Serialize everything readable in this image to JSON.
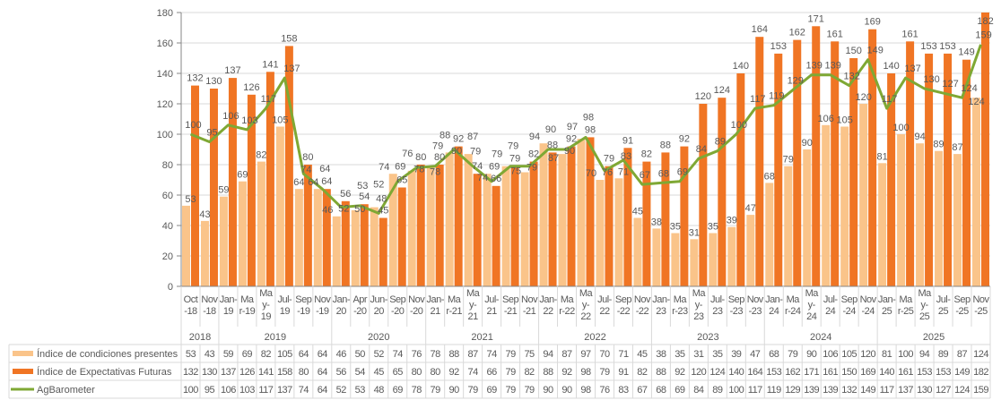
{
  "chart_data": {
    "type": "bar",
    "title": "",
    "xlabel": "",
    "ylabel": "",
    "ylim": [
      0,
      180
    ],
    "yticks": [
      0,
      20,
      40,
      60,
      80,
      100,
      120,
      140,
      160,
      180
    ],
    "grid": true,
    "legend_placement": "bottom data table",
    "categories": [
      "Oct-18",
      "Nov-18",
      "Jan-19",
      "Mar-19",
      "May-19",
      "Jul-19",
      "Sep-19",
      "Nov-19",
      "Jan-20",
      "Apr-20",
      "Jun-20",
      "Sep-20",
      "Nov-20",
      "Jan-21",
      "Mar-21",
      "May-21",
      "Jul-21",
      "Sep-21",
      "Nov-21",
      "Jan-22",
      "Mar-22",
      "May-22",
      "Jul-22",
      "Sep-22",
      "Nov-22",
      "Jan-23",
      "Mar-23",
      "May-23",
      "Jul-23",
      "Sep-23",
      "Nov-23",
      "Jan-24",
      "Mar-24",
      "May-24",
      "Jul-24",
      "Sep-24",
      "Nov-24",
      "Jan-25",
      "Mar-25",
      "May-25",
      "Jul-25",
      "Sep-25",
      "Nov-25"
    ],
    "year_groups": [
      {
        "label": "2018",
        "count": 2
      },
      {
        "label": "2019",
        "count": 6
      },
      {
        "label": "2020",
        "count": 5
      },
      {
        "label": "2021",
        "count": 6
      },
      {
        "label": "2022",
        "count": 6
      },
      {
        "label": "2023",
        "count": 6
      },
      {
        "label": "2024",
        "count": 6
      },
      {
        "label": "2025",
        "count": 6
      }
    ],
    "series": [
      {
        "name": "Índice de condiciones presentes",
        "type": "bar",
        "color": "#FAC48A",
        "values": [
          53,
          43,
          59,
          69,
          82,
          105,
          64,
          64,
          46,
          50,
          52,
          74,
          76,
          78,
          88,
          87,
          74,
          79,
          75,
          94,
          87,
          97,
          70,
          71,
          45,
          38,
          35,
          31,
          35,
          39,
          47,
          68,
          79,
          90,
          106,
          105,
          120,
          81,
          100,
          94,
          89,
          87,
          124
        ]
      },
      {
        "name": "Índice de Expectativas Futuras",
        "type": "bar",
        "color": "#F07524",
        "values": [
          132,
          130,
          137,
          126,
          141,
          158,
          80,
          64,
          56,
          54,
          45,
          65,
          80,
          80,
          92,
          74,
          66,
          79,
          82,
          88,
          92,
          98,
          79,
          91,
          82,
          88,
          92,
          120,
          124,
          140,
          164,
          153,
          162,
          171,
          161,
          150,
          169,
          140,
          161,
          153,
          153,
          149,
          182
        ]
      },
      {
        "name": "AgBarometer",
        "type": "line",
        "color": "#7FA834",
        "values": [
          100,
          95,
          106,
          103,
          117,
          137,
          74,
          64,
          52,
          53,
          48,
          69,
          78,
          79,
          90,
          79,
          69,
          79,
          79,
          90,
          90,
          98,
          76,
          83,
          67,
          68,
          69,
          84,
          89,
          100,
          117,
          119,
          129,
          139,
          139,
          132,
          149,
          117,
          137,
          130,
          127,
          124,
          159
        ]
      }
    ]
  }
}
